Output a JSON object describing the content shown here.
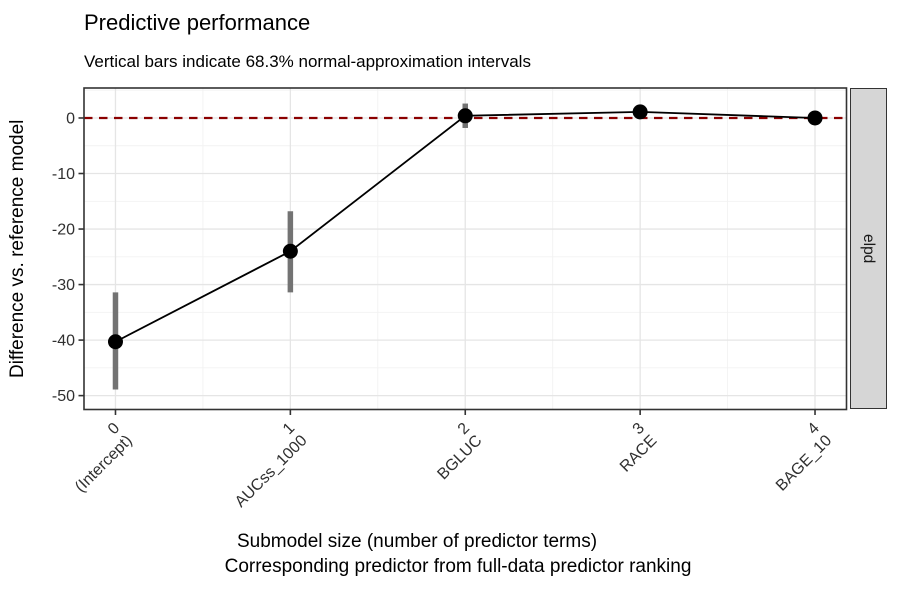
{
  "header": {
    "title": "Predictive performance",
    "subtitle": "Vertical bars indicate 68.3% normal-approximation intervals"
  },
  "chart_data": {
    "type": "line",
    "title": "Predictive performance",
    "subtitle": "Vertical bars indicate 68.3% normal-approximation intervals",
    "ylabel": "Difference vs. reference model",
    "xlabel_line1": "Submodel size (number of predictor terms)",
    "xlabel_line2": "Corresponding predictor from full-data predictor ranking",
    "facet_strip_label": "elpd",
    "x": [
      0,
      1,
      2,
      3,
      4
    ],
    "x_tick_numbers": [
      "0",
      "1",
      "2",
      "3",
      "4"
    ],
    "x_tick_predictors": [
      "(Intercept)",
      "AUCss_1000",
      "BGLUC",
      "RACE",
      "BAGE_10"
    ],
    "series": [
      {
        "name": "elpd difference",
        "values": [
          -40.3,
          -24.0,
          0.4,
          1.1,
          0.0
        ],
        "ci_lower": [
          -48.9,
          -31.4,
          -1.8,
          -0.1,
          -1.2
        ],
        "ci_upper": [
          -31.4,
          -16.8,
          2.6,
          2.3,
          1.2
        ]
      }
    ],
    "reference_line_y": 0,
    "y_ticks": [
      0,
      -10,
      -20,
      -30,
      -40,
      -50
    ],
    "y_minor_ticks": [
      5,
      -5,
      -15,
      -25,
      -35,
      -45
    ],
    "x_minor_ticks": [
      0.5,
      1.5,
      2.5,
      3.5
    ],
    "ylim": [
      -52.5,
      5.4
    ],
    "xlim": [
      -0.18,
      4.18
    ],
    "grid": true,
    "legend_position": "none",
    "colors": {
      "reference_line": "#8B0000",
      "line": "#000000",
      "point": "#000000",
      "interval_bar": "#737373",
      "strip_fill": "#D6D6D6",
      "strip_border": "#333333",
      "panel_border": "#333333",
      "panel_background": "#FFFFFF",
      "grid_major": "#E5E5E5",
      "grid_minor": "#F2F2F2",
      "tick_mark": "#333333",
      "tick_label": "#303030"
    }
  }
}
